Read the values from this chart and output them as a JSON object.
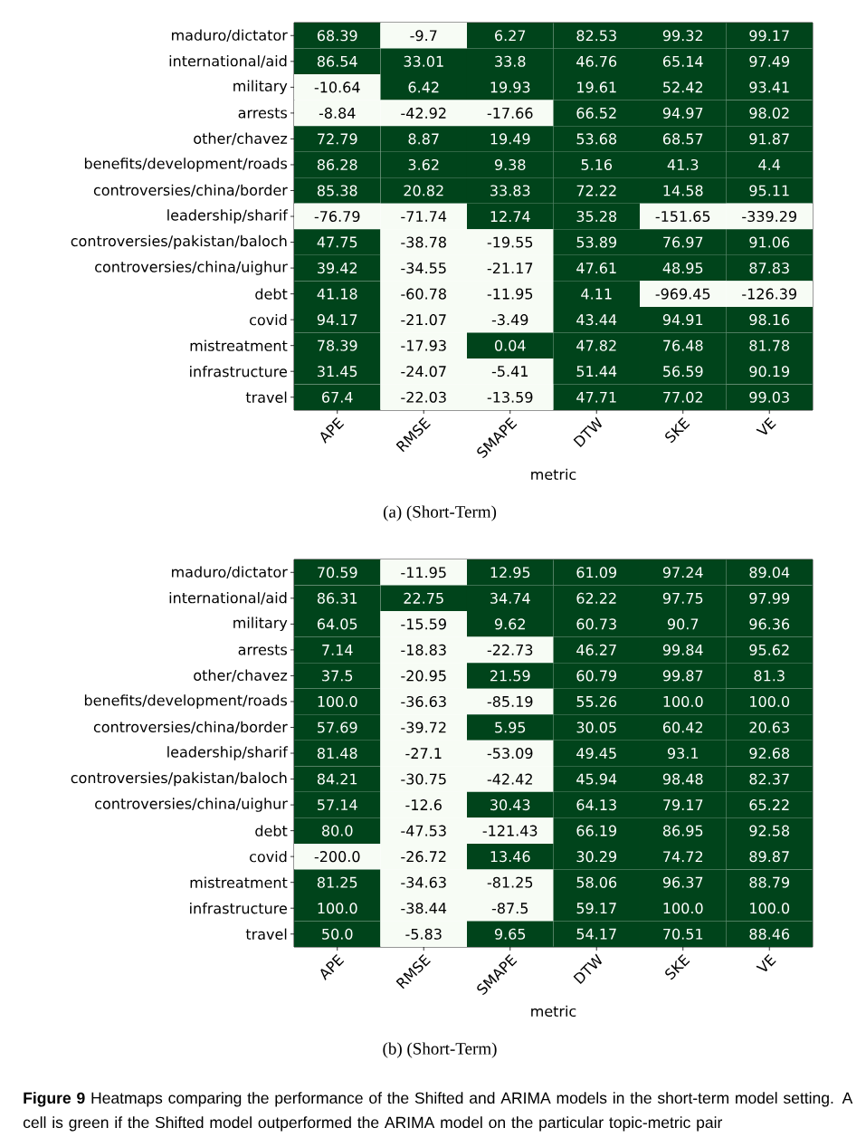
{
  "chart_data": [
    {
      "type": "heatmap",
      "xlabel": "metric",
      "categories": [
        "APE",
        "RMSE",
        "SMAPE",
        "DTW",
        "SKE",
        "VE"
      ],
      "y_categories": [
        "maduro/dictator",
        "international/aid",
        "military",
        "arrests",
        "other/chavez",
        "benefits/development/roads",
        "controversies/china/border",
        "leadership/sharif",
        "controversies/pakistan/baloch",
        "controversies/china/uighur",
        "debt",
        "covid",
        "mistreatment",
        "infrastructure",
        "travel"
      ],
      "cells": [
        [
          68.39,
          -9.7,
          6.27,
          82.53,
          99.32,
          99.17
        ],
        [
          86.54,
          33.01,
          33.8,
          46.76,
          65.14,
          97.49
        ],
        [
          -10.64,
          6.42,
          19.93,
          19.61,
          52.42,
          93.41
        ],
        [
          -8.84,
          -42.92,
          -17.66,
          66.52,
          94.97,
          98.02
        ],
        [
          72.79,
          8.87,
          19.49,
          53.68,
          68.57,
          91.87
        ],
        [
          86.28,
          3.62,
          9.38,
          5.16,
          41.3,
          4.4
        ],
        [
          85.38,
          20.82,
          33.83,
          72.22,
          14.58,
          95.11
        ],
        [
          -76.79,
          -71.74,
          12.74,
          35.28,
          -151.65,
          -339.29
        ],
        [
          47.75,
          -38.78,
          -19.55,
          53.89,
          76.97,
          91.06
        ],
        [
          39.42,
          -34.55,
          -21.17,
          47.61,
          48.95,
          87.83
        ],
        [
          41.18,
          -60.78,
          -11.95,
          4.11,
          -969.45,
          -126.39
        ],
        [
          94.17,
          -21.07,
          -3.49,
          43.44,
          94.91,
          98.16
        ],
        [
          78.39,
          -17.93,
          0.04,
          47.82,
          76.48,
          81.78
        ],
        [
          31.45,
          -24.07,
          -5.41,
          51.44,
          56.59,
          90.19
        ],
        [
          67.4,
          -22.03,
          -13.59,
          47.71,
          77.02,
          99.03
        ]
      ],
      "cell_labels": [
        [
          "68.39",
          "-9.7",
          "6.27",
          "82.53",
          "99.32",
          "99.17"
        ],
        [
          "86.54",
          "33.01",
          "33.8",
          "46.76",
          "65.14",
          "97.49"
        ],
        [
          "-10.64",
          "6.42",
          "19.93",
          "19.61",
          "52.42",
          "93.41"
        ],
        [
          "-8.84",
          "-42.92",
          "-17.66",
          "66.52",
          "94.97",
          "98.02"
        ],
        [
          "72.79",
          "8.87",
          "19.49",
          "53.68",
          "68.57",
          "91.87"
        ],
        [
          "86.28",
          "3.62",
          "9.38",
          "5.16",
          "41.3",
          "4.4"
        ],
        [
          "85.38",
          "20.82",
          "33.83",
          "72.22",
          "14.58",
          "95.11"
        ],
        [
          "-76.79",
          "-71.74",
          "12.74",
          "35.28",
          "-151.65",
          "-339.29"
        ],
        [
          "47.75",
          "-38.78",
          "-19.55",
          "53.89",
          "76.97",
          "91.06"
        ],
        [
          "39.42",
          "-34.55",
          "-21.17",
          "47.61",
          "48.95",
          "87.83"
        ],
        [
          "41.18",
          "-60.78",
          "-11.95",
          "4.11",
          "-969.45",
          "-126.39"
        ],
        [
          "94.17",
          "-21.07",
          "-3.49",
          "43.44",
          "94.91",
          "98.16"
        ],
        [
          "78.39",
          "-17.93",
          "0.04",
          "47.82",
          "76.48",
          "81.78"
        ],
        [
          "31.45",
          "-24.07",
          "-5.41",
          "51.44",
          "56.59",
          "90.19"
        ],
        [
          "67.4",
          "-22.03",
          "-13.59",
          "47.71",
          "77.02",
          "99.03"
        ]
      ],
      "colors": [
        "#f7fcf5",
        "#00441b"
      ],
      "annotations": [
        "(a) (Short-Term)"
      ]
    },
    {
      "type": "heatmap",
      "xlabel": "metric",
      "categories": [
        "APE",
        "RMSE",
        "SMAPE",
        "DTW",
        "SKE",
        "VE"
      ],
      "y_categories": [
        "maduro/dictator",
        "international/aid",
        "military",
        "arrests",
        "other/chavez",
        "benefits/development/roads",
        "controversies/china/border",
        "leadership/sharif",
        "controversies/pakistan/baloch",
        "controversies/china/uighur",
        "debt",
        "covid",
        "mistreatment",
        "infrastructure",
        "travel"
      ],
      "cells": [
        [
          70.59,
          -11.95,
          12.95,
          61.09,
          97.24,
          89.04
        ],
        [
          86.31,
          22.75,
          34.74,
          62.22,
          97.75,
          97.99
        ],
        [
          64.05,
          -15.59,
          9.62,
          60.73,
          90.7,
          96.36
        ],
        [
          7.14,
          -18.83,
          -22.73,
          46.27,
          99.84,
          95.62
        ],
        [
          37.5,
          -20.95,
          21.59,
          60.79,
          99.87,
          81.3
        ],
        [
          100.0,
          -36.63,
          -85.19,
          55.26,
          100.0,
          100.0
        ],
        [
          57.69,
          -39.72,
          5.95,
          30.05,
          60.42,
          20.63
        ],
        [
          81.48,
          -27.1,
          -53.09,
          49.45,
          93.1,
          92.68
        ],
        [
          84.21,
          -30.75,
          -42.42,
          45.94,
          98.48,
          82.37
        ],
        [
          57.14,
          -12.6,
          30.43,
          64.13,
          79.17,
          65.22
        ],
        [
          80.0,
          -47.53,
          -121.43,
          66.19,
          86.95,
          92.58
        ],
        [
          -200.0,
          -26.72,
          13.46,
          30.29,
          74.72,
          89.87
        ],
        [
          81.25,
          -34.63,
          -81.25,
          58.06,
          96.37,
          88.79
        ],
        [
          100.0,
          -38.44,
          -87.5,
          59.17,
          100.0,
          100.0
        ],
        [
          50.0,
          -5.83,
          9.65,
          54.17,
          70.51,
          88.46
        ]
      ],
      "cell_labels": [
        [
          "70.59",
          "-11.95",
          "12.95",
          "61.09",
          "97.24",
          "89.04"
        ],
        [
          "86.31",
          "22.75",
          "34.74",
          "62.22",
          "97.75",
          "97.99"
        ],
        [
          "64.05",
          "-15.59",
          "9.62",
          "60.73",
          "90.7",
          "96.36"
        ],
        [
          "7.14",
          "-18.83",
          "-22.73",
          "46.27",
          "99.84",
          "95.62"
        ],
        [
          "37.5",
          "-20.95",
          "21.59",
          "60.79",
          "99.87",
          "81.3"
        ],
        [
          "100.0",
          "-36.63",
          "-85.19",
          "55.26",
          "100.0",
          "100.0"
        ],
        [
          "57.69",
          "-39.72",
          "5.95",
          "30.05",
          "60.42",
          "20.63"
        ],
        [
          "81.48",
          "-27.1",
          "-53.09",
          "49.45",
          "93.1",
          "92.68"
        ],
        [
          "84.21",
          "-30.75",
          "-42.42",
          "45.94",
          "98.48",
          "82.37"
        ],
        [
          "57.14",
          "-12.6",
          "30.43",
          "64.13",
          "79.17",
          "65.22"
        ],
        [
          "80.0",
          "-47.53",
          "-121.43",
          "66.19",
          "86.95",
          "92.58"
        ],
        [
          "-200.0",
          "-26.72",
          "13.46",
          "30.29",
          "74.72",
          "89.87"
        ],
        [
          "81.25",
          "-34.63",
          "-81.25",
          "58.06",
          "96.37",
          "88.79"
        ],
        [
          "100.0",
          "-38.44",
          "-87.5",
          "59.17",
          "100.0",
          "100.0"
        ],
        [
          "50.0",
          "-5.83",
          "9.65",
          "54.17",
          "70.51",
          "88.46"
        ]
      ],
      "colors": [
        "#f7fcf5",
        "#00441b"
      ],
      "annotations": [
        "(b) (Short-Term)",
        "**Figure 9** Heatmaps comparing the performance of the Shifted and ARIMA models in the short-term model setting. A cell is green if the Shifted model outperformed the ARIMA model on the particular topic-metric pair"
      ]
    }
  ]
}
